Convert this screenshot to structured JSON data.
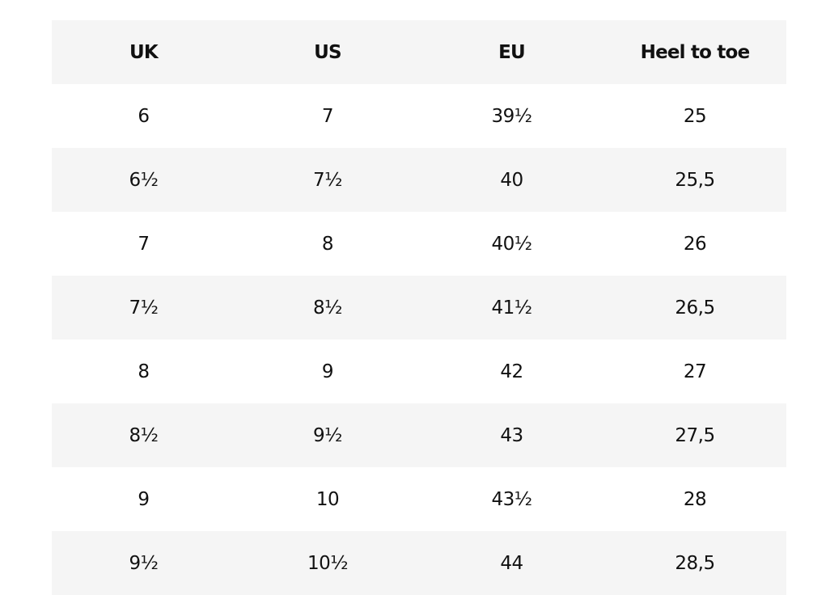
{
  "size_chart": {
    "headers": [
      "UK",
      "US",
      "EU",
      "Heel to toe"
    ],
    "rows": [
      [
        "6",
        "7",
        "39½",
        "25"
      ],
      [
        "6½",
        "7½",
        "40",
        "25,5"
      ],
      [
        "7",
        "8",
        "40½",
        "26"
      ],
      [
        "7½",
        "8½",
        "41½",
        "26,5"
      ],
      [
        "8",
        "9",
        "42",
        "27"
      ],
      [
        "8½",
        "9½",
        "43",
        "27,5"
      ],
      [
        "9",
        "10",
        "43½",
        "28"
      ],
      [
        "9½",
        "10½",
        "44",
        "28,5"
      ]
    ]
  },
  "colors": {
    "stripe": "#f5f5f5",
    "background": "#ffffff",
    "text": "#111111"
  }
}
